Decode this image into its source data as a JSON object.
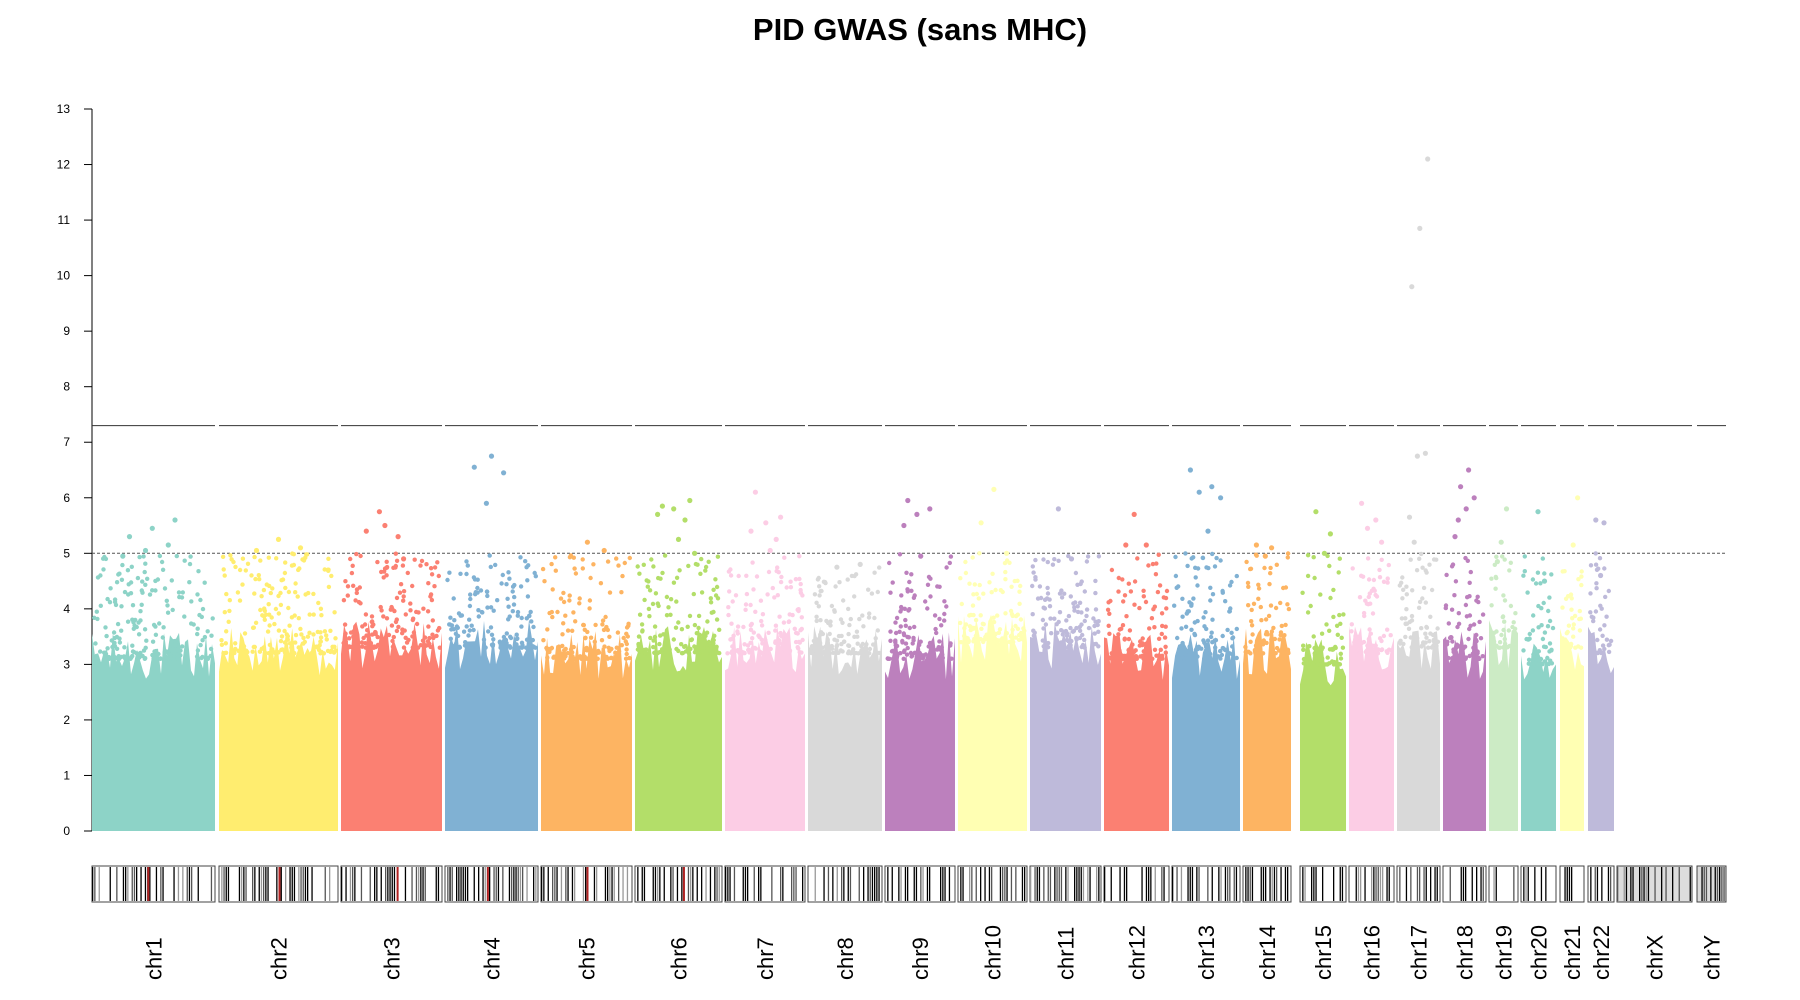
{
  "chart_data": {
    "type": "scatter",
    "title": "PID GWAS (sans MHC)",
    "xlabel": "",
    "ylabel": "",
    "ylim": [
      0,
      13
    ],
    "yticks": [
      0,
      1,
      2,
      3,
      4,
      5,
      6,
      7,
      8,
      9,
      10,
      11,
      12,
      13
    ],
    "genome_wide_threshold": 7.3,
    "suggestive_threshold": 5.0,
    "grid": false,
    "legend": "none",
    "chromosomes": [
      {
        "name": "chr1",
        "color": "#8DD3C7",
        "base": 3.1,
        "max": 5.6,
        "peaks": [
          4.95,
          5.05,
          5.15,
          5.3,
          5.45,
          5.6
        ]
      },
      {
        "name": "chr2",
        "color": "#FFED6F",
        "base": 3.2,
        "max": 5.25,
        "peaks": [
          5.05,
          5.25,
          5.1
        ]
      },
      {
        "name": "chr3",
        "color": "#FB8072",
        "base": 3.3,
        "max": 5.75,
        "peaks": [
          5.75,
          5.3,
          5.4,
          5.5,
          4.9
        ]
      },
      {
        "name": "chr4",
        "color": "#80B1D3",
        "base": 3.3,
        "max": 6.75,
        "peaks": [
          5.9,
          6.45,
          6.55,
          6.75
        ]
      },
      {
        "name": "chr5",
        "color": "#FDB462",
        "base": 3.1,
        "max": 5.2,
        "peaks": [
          5.2,
          5.05
        ]
      },
      {
        "name": "chr6",
        "color": "#B3DE69",
        "base": 3.2,
        "max": 5.95,
        "peaks": [
          5.6,
          5.7,
          5.8,
          5.95,
          5.85,
          5.25,
          5.0
        ]
      },
      {
        "name": "chr7",
        "color": "#FCCDE5",
        "base": 3.2,
        "max": 6.1,
        "peaks": [
          5.25,
          5.4,
          5.55,
          5.65,
          6.1,
          5.05
        ]
      },
      {
        "name": "chr8",
        "color": "#D9D9D9",
        "base": 3.2,
        "max": 4.8,
        "peaks": [
          4.8,
          4.75
        ]
      },
      {
        "name": "chr9",
        "color": "#BC80BD",
        "base": 3.1,
        "max": 5.95,
        "peaks": [
          5.5,
          5.7,
          5.8,
          5.95,
          4.95
        ]
      },
      {
        "name": "chr10",
        "color": "#FFFFB3",
        "base": 3.4,
        "max": 6.15,
        "peaks": [
          5.55,
          6.15,
          5.0
        ]
      },
      {
        "name": "chr11",
        "color": "#BEBADA",
        "base": 3.3,
        "max": 5.8,
        "peaks": [
          5.8,
          4.9
        ]
      },
      {
        "name": "chr12",
        "color": "#FB8072",
        "base": 3.1,
        "max": 5.7,
        "peaks": [
          5.7,
          5.15,
          5.15
        ]
      },
      {
        "name": "chr13",
        "color": "#80B1D3",
        "base": 3.1,
        "max": 6.5,
        "peaks": [
          5.4,
          6.0,
          6.1,
          6.2,
          6.5
        ]
      },
      {
        "name": "chr14",
        "color": "#FDB462",
        "base": 3.2,
        "max": 5.15,
        "peaks": [
          5.1,
          5.15,
          4.95
        ]
      },
      {
        "name": "chr15",
        "color": "#B3DE69",
        "base": 3.0,
        "max": 5.75,
        "peaks": [
          5.35,
          5.75,
          5.0
        ]
      },
      {
        "name": "chr16",
        "color": "#FCCDE5",
        "base": 3.2,
        "max": 5.9,
        "peaks": [
          5.2,
          5.45,
          5.6,
          5.9
        ]
      },
      {
        "name": "chr17",
        "color": "#D9D9D9",
        "base": 3.3,
        "max": 12.1,
        "peaks": [
          5.65,
          6.75,
          6.8,
          9.8,
          10.85,
          12.1,
          5.2
        ]
      },
      {
        "name": "chr18",
        "color": "#BC80BD",
        "base": 3.1,
        "max": 6.5,
        "peaks": [
          5.6,
          5.8,
          6.0,
          6.2,
          6.5,
          5.3
        ]
      },
      {
        "name": "chr19",
        "color": "#CCEBC5",
        "base": 3.3,
        "max": 5.8,
        "peaks": [
          5.2,
          5.8,
          4.85
        ]
      },
      {
        "name": "chr20",
        "color": "#8DD3C7",
        "base": 3.0,
        "max": 5.75,
        "peaks": [
          5.75,
          4.5
        ]
      },
      {
        "name": "chr21",
        "color": "#FFFFB3",
        "base": 3.3,
        "max": 6.0,
        "peaks": [
          5.15,
          6.0
        ]
      },
      {
        "name": "chr22",
        "color": "#BEBADA",
        "base": 3.2,
        "max": 5.6,
        "peaks": [
          5.55,
          5.6,
          4.6
        ]
      },
      {
        "name": "chrX",
        "color": "#CCCCCC",
        "base": 0,
        "max": 0,
        "peaks": []
      },
      {
        "name": "chrY",
        "color": "#CCCCCC",
        "base": 0,
        "max": 0,
        "peaks": []
      }
    ]
  }
}
